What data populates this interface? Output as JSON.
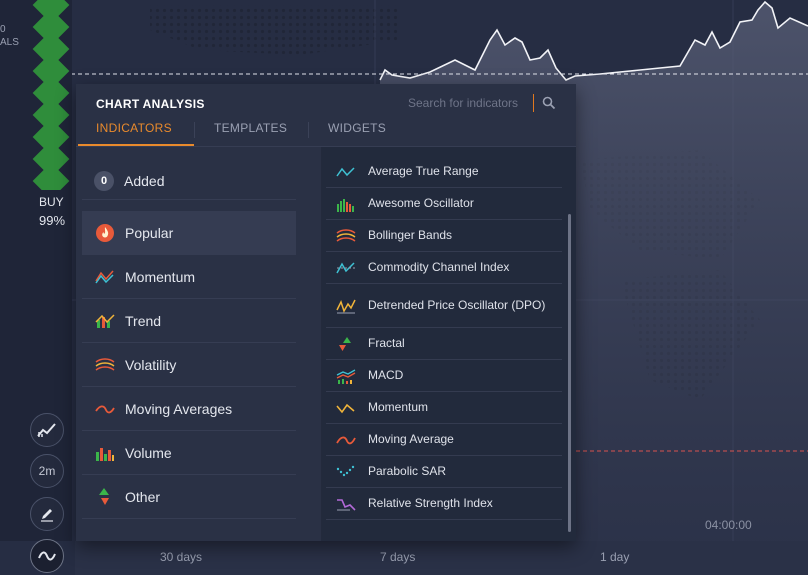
{
  "chart": {
    "cut_texts": [
      "0",
      "ALS"
    ],
    "buy_label": "BUY",
    "buy_percent": "99%",
    "time_label": "04:00:00",
    "timeframes": [
      "30 days",
      "7 days",
      "1 day"
    ],
    "colors": {
      "accent": "#e98a2c",
      "buy_green": "#2f8d3b",
      "ref_line_red": "#d9534f"
    }
  },
  "tools": {
    "indicator_icon": "chart-trend-icon",
    "period_label": "2m",
    "draw_icon": "pencil-icon",
    "wave_icon": "wave-icon"
  },
  "panel": {
    "title": "CHART ANALYSIS",
    "search_placeholder": "Search for indicators",
    "tabs": [
      {
        "label": "INDICATORS",
        "active": true
      },
      {
        "label": "TEMPLATES",
        "active": false
      },
      {
        "label": "WIDGETS",
        "active": false
      }
    ],
    "added": {
      "count": "0",
      "label": "Added"
    },
    "categories": [
      {
        "label": "Popular",
        "icon": "flame-icon",
        "active": true
      },
      {
        "label": "Momentum",
        "icon": "momentum-icon"
      },
      {
        "label": "Trend",
        "icon": "trend-icon"
      },
      {
        "label": "Volatility",
        "icon": "volatility-icon"
      },
      {
        "label": "Moving Averages",
        "icon": "moving-average-icon"
      },
      {
        "label": "Volume",
        "icon": "volume-icon"
      },
      {
        "label": "Other",
        "icon": "other-icon"
      }
    ],
    "indicators": [
      {
        "label": "Average True Range",
        "icon": "atr-icon"
      },
      {
        "label": "Awesome Oscillator",
        "icon": "awesome-oscillator-icon"
      },
      {
        "label": "Bollinger Bands",
        "icon": "bollinger-icon"
      },
      {
        "label": "Commodity Channel Index",
        "icon": "cci-icon"
      },
      {
        "label": "Detrended Price Oscillator (DPO)",
        "icon": "dpo-icon"
      },
      {
        "label": "Fractal",
        "icon": "fractal-icon"
      },
      {
        "label": "MACD",
        "icon": "macd-icon"
      },
      {
        "label": "Momentum",
        "icon": "momentum-indicator-icon"
      },
      {
        "label": "Moving Average",
        "icon": "moving-average-indicator-icon"
      },
      {
        "label": "Parabolic SAR",
        "icon": "parabolic-sar-icon"
      },
      {
        "label": "Relative Strength Index",
        "icon": "rsi-icon"
      }
    ]
  }
}
